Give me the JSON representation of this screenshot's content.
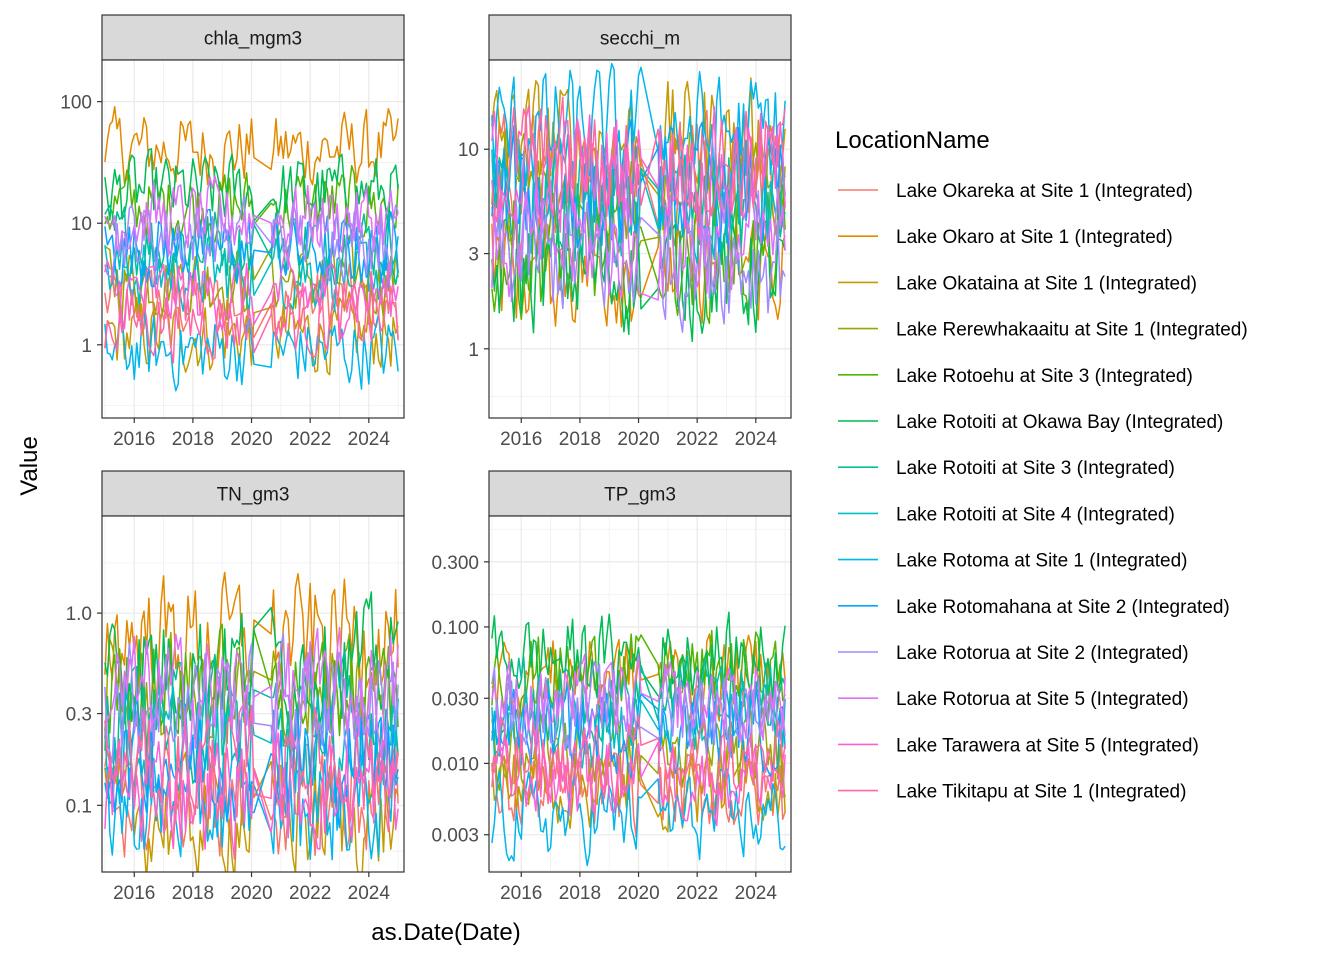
{
  "chart_data": {
    "type": "line",
    "x_axis_label": "as.Date(Date)",
    "y_axis_label": "Value",
    "x_ticks": [
      "2016",
      "2018",
      "2020",
      "2022",
      "2024"
    ],
    "x_range": [
      2014.9,
      2025.2
    ],
    "legend": {
      "title": "LocationName",
      "placement": "right",
      "entries": [
        {
          "name": "Lake Okareka at Site 1 (Integrated)",
          "color": "#F8766D"
        },
        {
          "name": "Lake Okaro at Site 1 (Integrated)",
          "color": "#E38900"
        },
        {
          "name": "Lake Okataina at Site 1 (Integrated)",
          "color": "#C49A00"
        },
        {
          "name": "Lake Rerewhakaaitu at Site 1 (Integrated)",
          "color": "#99A800"
        },
        {
          "name": "Lake Rotoehu at Site 3 (Integrated)",
          "color": "#53B400"
        },
        {
          "name": "Lake Rotoiti at Okawa Bay (Integrated)",
          "color": "#00BC56"
        },
        {
          "name": "Lake Rotoiti at Site 3 (Integrated)",
          "color": "#00C094"
        },
        {
          "name": "Lake Rotoiti at Site 4 (Integrated)",
          "color": "#00BFC4"
        },
        {
          "name": "Lake Rotoma at Site 1 (Integrated)",
          "color": "#00B6EB"
        },
        {
          "name": "Lake Rotomahana at Site 2 (Integrated)",
          "color": "#06A4FF"
        },
        {
          "name": "Lake Rotorua at Site 2 (Integrated)",
          "color": "#A58AFF"
        },
        {
          "name": "Lake Rotorua at Site 5 (Integrated)",
          "color": "#DF70F8"
        },
        {
          "name": "Lake Tarawera at Site 5 (Integrated)",
          "color": "#FB61D7"
        },
        {
          "name": "Lake Tikitapu at Site 1 (Integrated)",
          "color": "#FF66A8"
        }
      ]
    },
    "panels": [
      {
        "name": "chla_mgm3",
        "scale": "log10",
        "y_range": [
          0.25,
          220
        ],
        "y_ticks": [
          {
            "value": 1,
            "label": "1"
          },
          {
            "value": 10,
            "label": "10"
          },
          {
            "value": 100,
            "label": "100"
          }
        ],
        "series_levels": [
          2.2,
          40,
          1.2,
          3.5,
          14,
          18,
          7,
          4,
          0.9,
          6,
          8,
          11,
          2.6,
          1.6
        ]
      },
      {
        "name": "secchi_m",
        "scale": "log10",
        "y_range": [
          0.45,
          28
        ],
        "y_ticks": [
          {
            "value": 1,
            "label": "1"
          },
          {
            "value": 3,
            "label": "3"
          },
          {
            "value": 10,
            "label": "10"
          }
        ],
        "series_levels": [
          7,
          2.6,
          11,
          6,
          3.0,
          2.4,
          5,
          5.5,
          12,
          6,
          2.8,
          3.3,
          8,
          8.5
        ]
      },
      {
        "name": "TN_gm3",
        "scale": "log10",
        "y_range": [
          0.045,
          3.2
        ],
        "y_ticks": [
          {
            "value": 0.1,
            "label": "0.1"
          },
          {
            "value": 0.3,
            "label": "0.3"
          },
          {
            "value": 1,
            "label": "1.0"
          }
        ],
        "series_levels": [
          0.11,
          0.75,
          0.085,
          0.35,
          0.4,
          0.55,
          0.28,
          0.2,
          0.1,
          0.18,
          0.36,
          0.38,
          0.12,
          0.16
        ]
      },
      {
        "name": "TP_gm3",
        "scale": "log10",
        "y_range": [
          0.0016,
          0.65
        ],
        "y_ticks": [
          {
            "value": 0.003,
            "label": "0.003"
          },
          {
            "value": 0.01,
            "label": "0.010"
          },
          {
            "value": 0.03,
            "label": "0.030"
          },
          {
            "value": 0.1,
            "label": "0.100"
          },
          {
            "value": 0.3,
            "label": "0.300"
          }
        ],
        "series_levels": [
          0.006,
          0.045,
          0.007,
          0.012,
          0.045,
          0.06,
          0.03,
          0.02,
          0.004,
          0.018,
          0.025,
          0.028,
          0.008,
          0.01
        ]
      }
    ]
  }
}
